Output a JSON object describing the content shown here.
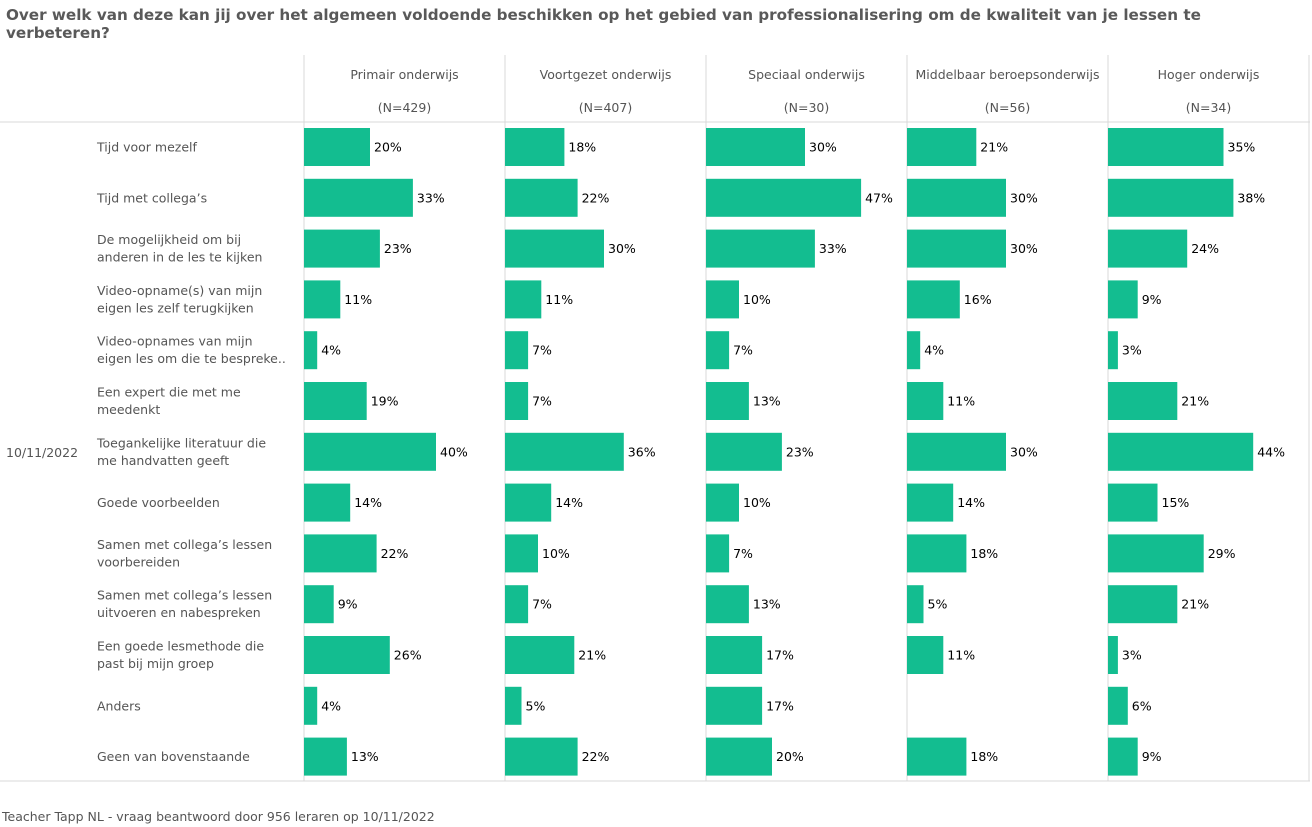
{
  "title": "Over welk van deze kan jij over het algemeen voldoende beschikken op het gebied van professionalisering om de kwaliteit van je lessen te verbeteren?",
  "footer": "Teacher Tapp NL - vraag beantwoord door 956 leraren op 10/11/2022",
  "colors": {
    "bar": "#13bd90",
    "grid": "#d9d9d9",
    "text": "#555555",
    "label": "#000000"
  },
  "chart_data": {
    "type": "bar",
    "orientation": "horizontal",
    "date": "10/11/2022",
    "value_unit": "%",
    "xlim": [
      0,
      50
    ],
    "categories": [
      [
        "Tijd voor mezelf"
      ],
      [
        "Tijd met collega’s"
      ],
      [
        "De mogelijkheid om bij",
        "anderen in de les te kijken"
      ],
      [
        "Video-opname(s) van mijn",
        "eigen les zelf terugkijken"
      ],
      [
        "Video-opnames van mijn",
        "eigen les om die te bespreke.."
      ],
      [
        "Een expert die met me",
        "meedenkt"
      ],
      [
        "Toegankelijke literatuur die",
        "me handvatten geeft"
      ],
      [
        "Goede voorbeelden"
      ],
      [
        "Samen met collega’s lessen",
        "voorbereiden"
      ],
      [
        "Samen met collega’s lessen",
        "uitvoeren en nabespreken"
      ],
      [
        "Een goede lesmethode die",
        "past bij mijn groep"
      ],
      [
        "Anders"
      ],
      [
        "Geen van bovenstaande"
      ]
    ],
    "panels": [
      {
        "name": "Primair onderwijs",
        "n": "(N=429)",
        "values": [
          20,
          33,
          23,
          11,
          4,
          19,
          40,
          14,
          22,
          9,
          26,
          4,
          13
        ]
      },
      {
        "name": "Voortgezet onderwijs",
        "n": "(N=407)",
        "values": [
          18,
          22,
          30,
          11,
          7,
          7,
          36,
          14,
          10,
          7,
          21,
          5,
          22
        ]
      },
      {
        "name": "Speciaal onderwijs",
        "n": "(N=30)",
        "values": [
          30,
          47,
          33,
          10,
          7,
          13,
          23,
          10,
          7,
          13,
          17,
          17,
          20
        ]
      },
      {
        "name": "Middelbaar beroepsonderwijs",
        "n": "(N=56)",
        "values": [
          21,
          30,
          30,
          16,
          4,
          11,
          30,
          14,
          18,
          5,
          11,
          null,
          18
        ]
      },
      {
        "name": "Hoger onderwijs",
        "n": "(N=34)",
        "values": [
          35,
          38,
          24,
          9,
          3,
          21,
          44,
          15,
          29,
          21,
          3,
          6,
          9
        ]
      }
    ]
  }
}
